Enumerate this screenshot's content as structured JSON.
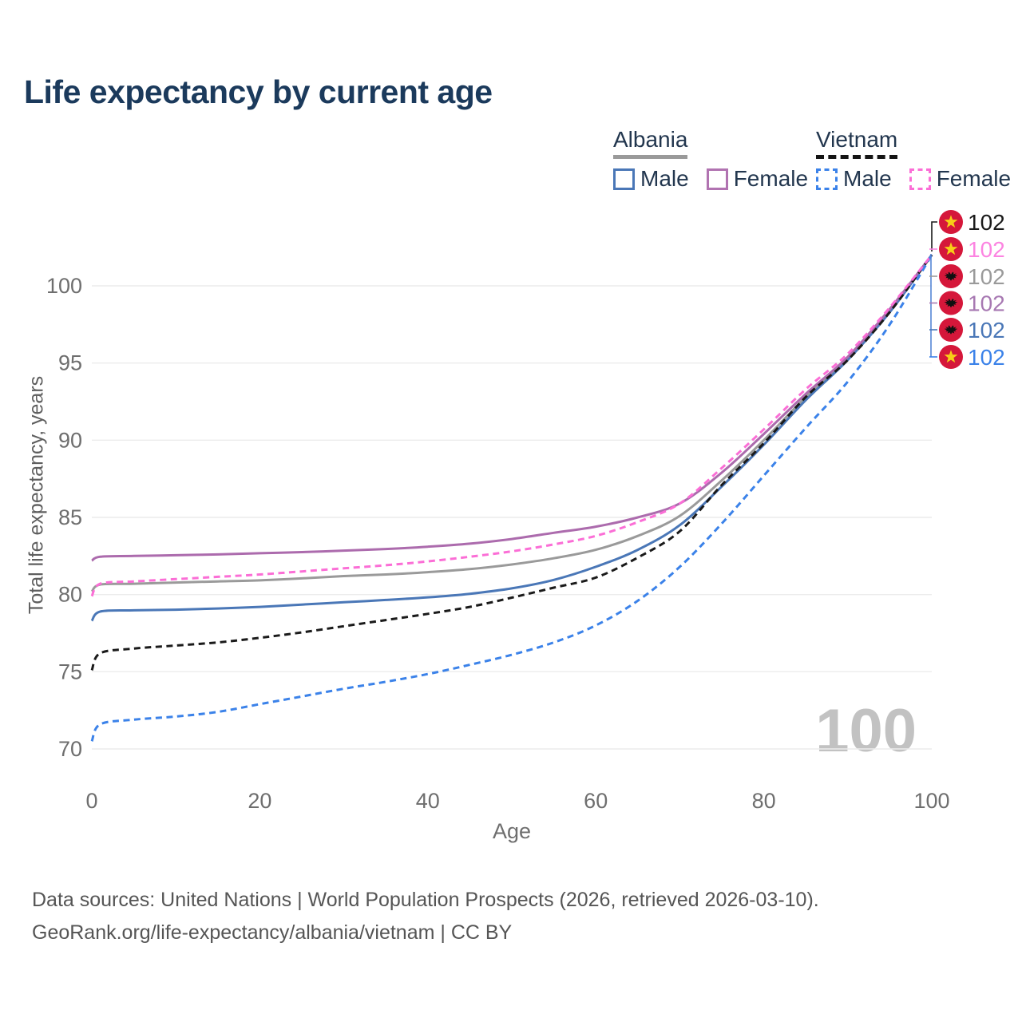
{
  "title": "Life expectancy by current age",
  "legend": {
    "groups": [
      {
        "label": "Albania",
        "line_style": "solid",
        "underline_color": "#9a9a9a",
        "items": [
          {
            "label": "Male",
            "color": "#4a77b7"
          },
          {
            "label": "Female",
            "color": "#b173b1"
          }
        ]
      },
      {
        "label": "Vietnam",
        "line_style": "dashed",
        "underline_color": "#141414",
        "items": [
          {
            "label": "Male",
            "color": "#3b82e9"
          },
          {
            "label": "Female",
            "color": "#fb6ed6"
          }
        ]
      }
    ]
  },
  "chart_data": {
    "type": "line",
    "title": "Life expectancy by current age",
    "xlabel": "Age",
    "ylabel": "Total life expectancy, years",
    "xlim": [
      0,
      100
    ],
    "ylim": [
      70,
      103
    ],
    "x_ticks": [
      0,
      20,
      40,
      60,
      80,
      100
    ],
    "y_ticks": [
      70,
      75,
      80,
      85,
      90,
      95,
      100
    ],
    "grid": "horizontal",
    "legend_position": "top-right",
    "x": [
      0,
      1,
      5,
      10,
      15,
      20,
      25,
      30,
      35,
      40,
      45,
      50,
      55,
      60,
      65,
      70,
      75,
      80,
      85,
      90,
      95,
      100
    ],
    "series": [
      {
        "name": "Albania Both sexes",
        "country": "Albania",
        "sex": "Both",
        "color": "#9a9a9a",
        "dash": "solid",
        "values": [
          80.2,
          80.65,
          80.7,
          80.78,
          80.85,
          80.92,
          81.05,
          81.2,
          81.3,
          81.45,
          81.65,
          81.95,
          82.35,
          82.9,
          83.8,
          85.1,
          87.4,
          90.0,
          92.8,
          95.3,
          98.4,
          102
        ]
      },
      {
        "name": "Albania Male",
        "country": "Albania",
        "sex": "Male",
        "color": "#4a77b7",
        "dash": "solid",
        "values": [
          78.3,
          78.9,
          78.98,
          79.02,
          79.1,
          79.2,
          79.35,
          79.5,
          79.65,
          79.82,
          80.05,
          80.4,
          80.95,
          81.8,
          82.9,
          84.5,
          87.0,
          89.7,
          92.6,
          95.2,
          98.3,
          102
        ]
      },
      {
        "name": "Albania Female",
        "country": "Albania",
        "sex": "Female",
        "color": "#ac6bad",
        "dash": "solid",
        "values": [
          82.2,
          82.45,
          82.5,
          82.55,
          82.6,
          82.68,
          82.75,
          82.85,
          82.95,
          83.1,
          83.3,
          83.6,
          84.0,
          84.4,
          85.0,
          85.9,
          87.9,
          90.4,
          93.0,
          95.4,
          98.5,
          102
        ]
      },
      {
        "name": "Vietnam Both sexes",
        "country": "Vietnam",
        "sex": "Both",
        "color": "#1a1a1a",
        "dash": "dashed",
        "values": [
          75.1,
          76.2,
          76.5,
          76.7,
          76.9,
          77.2,
          77.55,
          77.95,
          78.35,
          78.75,
          79.2,
          79.8,
          80.45,
          81.1,
          82.4,
          84.1,
          87.1,
          89.8,
          92.8,
          95.2,
          98.3,
          102
        ]
      },
      {
        "name": "Vietnam Male",
        "country": "Vietnam",
        "sex": "Male",
        "color": "#3b82e9",
        "dash": "dashed",
        "values": [
          70.5,
          71.6,
          71.9,
          72.1,
          72.4,
          72.9,
          73.4,
          73.9,
          74.35,
          74.85,
          75.45,
          76.1,
          76.9,
          78.0,
          79.6,
          81.8,
          84.6,
          87.7,
          90.8,
          93.8,
          97.5,
          102
        ]
      },
      {
        "name": "Vietnam Female",
        "country": "Vietnam",
        "sex": "Female",
        "color": "#fb6ed6",
        "dash": "dashed",
        "values": [
          79.9,
          80.7,
          80.85,
          81.0,
          81.15,
          81.3,
          81.5,
          81.7,
          81.9,
          82.15,
          82.45,
          82.8,
          83.25,
          83.8,
          84.7,
          85.9,
          88.2,
          90.7,
          93.3,
          95.6,
          98.6,
          102
        ]
      }
    ],
    "end_labels": [
      {
        "value": "102",
        "series": "Vietnam Both sexes",
        "flag": "vietnam",
        "color": "#1a1a1a"
      },
      {
        "value": "102",
        "series": "Vietnam Female",
        "flag": "vietnam",
        "color": "#fc84e1"
      },
      {
        "value": "102",
        "series": "Albania Both sexes",
        "flag": "albania",
        "color": "#9a9a9a"
      },
      {
        "value": "102",
        "series": "Albania Female",
        "flag": "albania",
        "color": "#a778b2"
      },
      {
        "value": "102",
        "series": "Albania Male",
        "flag": "albania",
        "color": "#4a77b7"
      },
      {
        "value": "102",
        "series": "Vietnam Male",
        "flag": "vietnam",
        "color": "#3b82e9"
      }
    ],
    "watermark": "100",
    "flag_colors": {
      "red": "#d5173a",
      "star_yellow": "#f7ce17",
      "eagle_black": "#101010"
    }
  },
  "footer": {
    "line1": "Data sources: United Nations | World Population Prospects (2026, retrieved 2026-03-10).",
    "line2": "GeoRank.org/life-expectancy/albania/vietnam | CC BY"
  }
}
